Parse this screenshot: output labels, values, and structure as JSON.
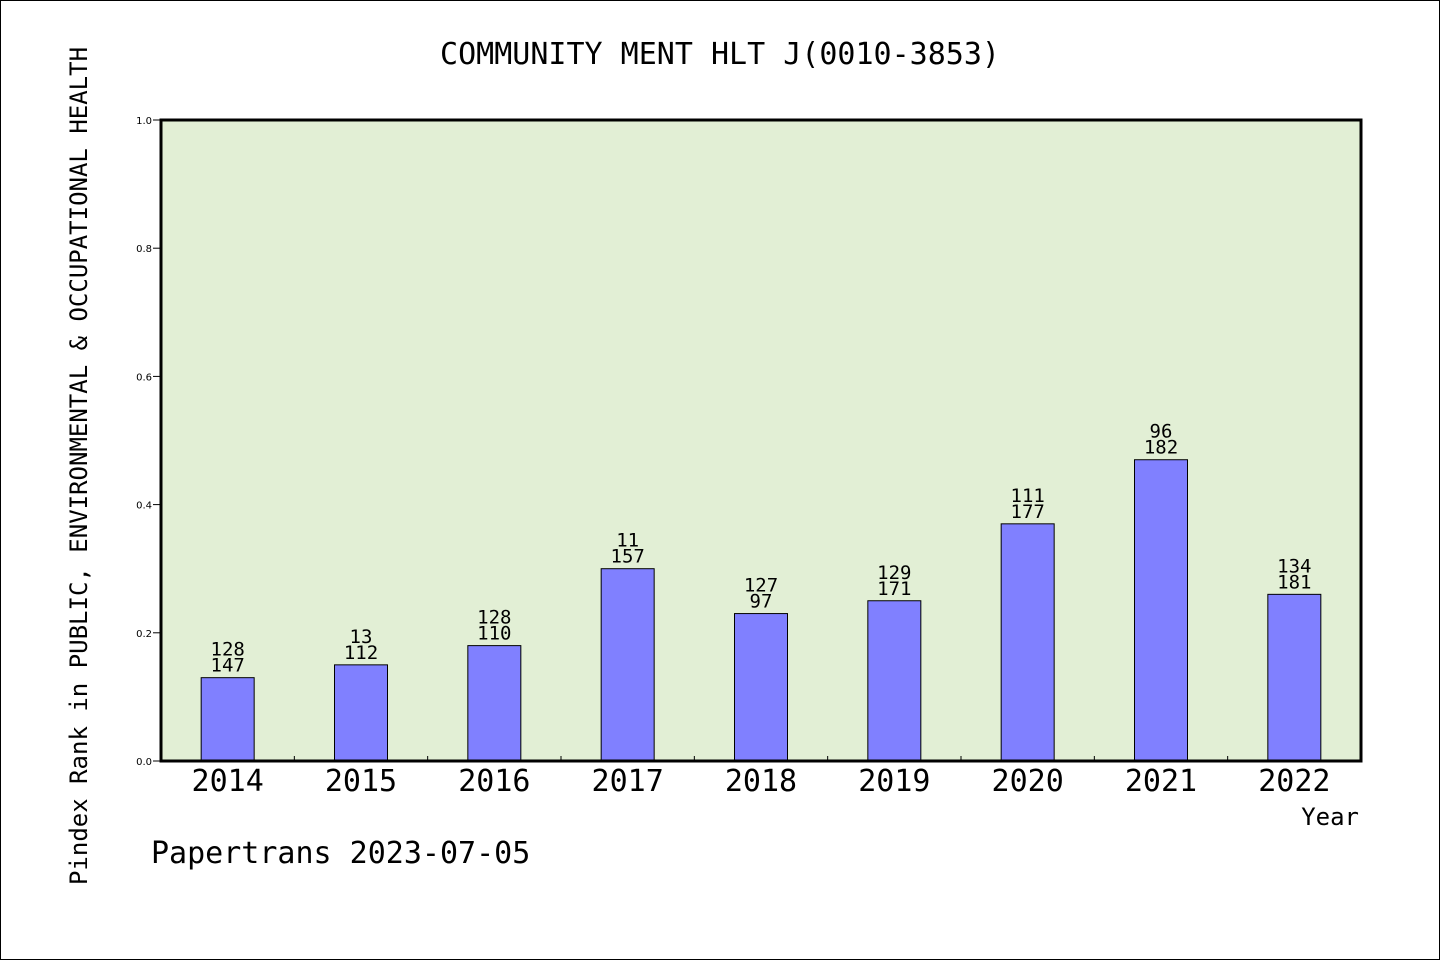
{
  "chart_data": {
    "type": "bar",
    "title": "COMMUNITY MENT HLT J(0010-3853)",
    "xlabel": "Year",
    "ylabel": "Pindex Rank in PUBLIC, ENVIRONMENTAL & OCCUPATIONAL HEALTH",
    "categories": [
      "2014",
      "2015",
      "2016",
      "2017",
      "2018",
      "2019",
      "2020",
      "2021",
      "2022"
    ],
    "values": [
      0.13,
      0.15,
      0.18,
      0.3,
      0.23,
      0.25,
      0.37,
      0.47,
      0.26
    ],
    "annotations": [
      {
        "top": "128",
        "bottom": "147"
      },
      {
        "top": "13",
        "bottom": "112"
      },
      {
        "top": "128",
        "bottom": "110"
      },
      {
        "top": "11",
        "bottom": "157"
      },
      {
        "top": "127",
        "bottom": "97"
      },
      {
        "top": "129",
        "bottom": "171"
      },
      {
        "top": "111",
        "bottom": "177"
      },
      {
        "top": "96",
        "bottom": "182"
      },
      {
        "top": "134",
        "bottom": "181"
      }
    ],
    "yticks": [
      "0.0",
      "0.2",
      "0.4",
      "0.6",
      "0.8",
      "1.0"
    ],
    "ylim": [
      0,
      1.0
    ],
    "grid": false,
    "colors": {
      "bar": "#8080ff",
      "plot_background": "#e2efd5"
    }
  },
  "footer": "Papertrans 2023-07-05"
}
